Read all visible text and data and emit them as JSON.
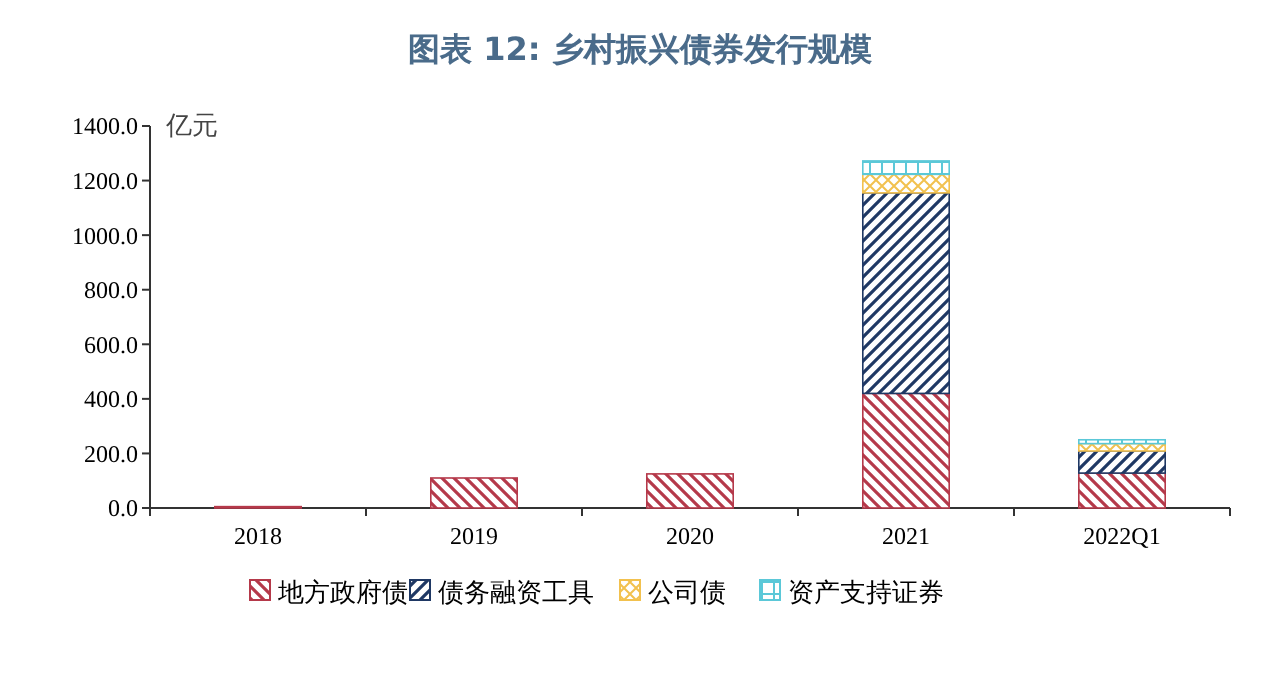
{
  "chart_data": {
    "type": "bar",
    "title": "图表 12:  乡村振兴债券发行规模",
    "ylabel": "亿元",
    "categories": [
      "2018",
      "2019",
      "2020",
      "2021",
      "2022Q1"
    ],
    "stacked": true,
    "series": [
      {
        "name": "地方政府债",
        "color": "#b5394a",
        "values": [
          5,
          110,
          125,
          420,
          128
        ]
      },
      {
        "name": "债务融资工具",
        "color": "#1f3864",
        "values": [
          0,
          0,
          0,
          735,
          81
        ]
      },
      {
        "name": "公司债",
        "color": "#f2c14e",
        "values": [
          0,
          0,
          0,
          68,
          27
        ]
      },
      {
        "name": "资产支持证券",
        "color": "#5bc8d8",
        "values": [
          0,
          0,
          0,
          49,
          14
        ]
      }
    ],
    "ylim": [
      0,
      1400
    ],
    "yticks": [
      {
        "value": 0,
        "label": "0.0"
      },
      {
        "value": 200,
        "label": "200.0"
      },
      {
        "value": 400,
        "label": "400.0"
      },
      {
        "value": 600,
        "label": "600.0"
      },
      {
        "value": 800,
        "label": "800.0"
      },
      {
        "value": 1000,
        "label": "1000.0"
      },
      {
        "value": 1200,
        "label": "1200.0"
      },
      {
        "value": 1400,
        "label": "1400.0"
      }
    ],
    "grid": false,
    "legend": "bottom"
  }
}
